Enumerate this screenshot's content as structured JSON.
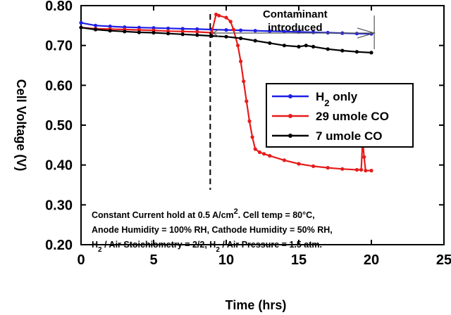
{
  "chart_data": {
    "type": "line",
    "xlabel": "Time (hrs)",
    "ylabel": "Cell Voltage (V)",
    "xlim": [
      0,
      25
    ],
    "ylim": [
      0.2,
      0.8
    ],
    "xticks": [
      0,
      5,
      10,
      15,
      20,
      25
    ],
    "xtick_labels": [
      "0",
      "5",
      "10",
      "15",
      "20",
      "25"
    ],
    "yticks": [
      0.2,
      0.3,
      0.4,
      0.5,
      0.6,
      0.7,
      0.8
    ],
    "ytick_labels": [
      "0.20",
      "0.30",
      "0.40",
      "0.50",
      "0.60",
      "0.70",
      "0.80"
    ],
    "grid": false,
    "legend_position": "center-right",
    "series": [
      {
        "name_parts": [
          "H",
          "2",
          " only"
        ],
        "color": "#1f1fe6",
        "x": [
          0,
          1,
          2,
          3,
          4,
          5,
          6,
          7,
          8,
          9,
          10,
          11,
          12,
          13,
          14,
          15,
          16,
          17,
          18,
          19,
          20
        ],
        "y": [
          0.757,
          0.75,
          0.748,
          0.746,
          0.745,
          0.744,
          0.743,
          0.742,
          0.741,
          0.74,
          0.739,
          0.738,
          0.737,
          0.736,
          0.735,
          0.734,
          0.733,
          0.732,
          0.731,
          0.73,
          0.729
        ]
      },
      {
        "name": "29 umole CO",
        "color": "#e61c1c",
        "x": [
          0,
          1,
          2,
          3,
          4,
          5,
          6,
          7,
          8,
          9,
          9.3,
          9.5,
          10.0,
          10.3,
          10.5,
          10.8,
          11.0,
          11.2,
          11.4,
          11.6,
          11.8,
          12.0,
          12.3,
          12.6,
          13,
          14,
          15,
          16,
          17,
          18,
          19,
          19.3,
          19.4,
          19.5,
          19.6,
          20
        ],
        "y": [
          0.745,
          0.742,
          0.741,
          0.74,
          0.739,
          0.738,
          0.736,
          0.735,
          0.734,
          0.732,
          0.778,
          0.775,
          0.77,
          0.76,
          0.74,
          0.7,
          0.66,
          0.61,
          0.56,
          0.51,
          0.47,
          0.44,
          0.432,
          0.428,
          0.423,
          0.412,
          0.403,
          0.397,
          0.393,
          0.39,
          0.388,
          0.388,
          0.462,
          0.42,
          0.386,
          0.386
        ]
      },
      {
        "name": "7 umole CO",
        "color": "#000000",
        "x": [
          0,
          1,
          2,
          3,
          4,
          5,
          6,
          7,
          8,
          9,
          10,
          11,
          12,
          13,
          14,
          15,
          15.5,
          16,
          17,
          18,
          19,
          20
        ],
        "y": [
          0.745,
          0.74,
          0.737,
          0.735,
          0.733,
          0.732,
          0.73,
          0.728,
          0.726,
          0.724,
          0.722,
          0.718,
          0.712,
          0.706,
          0.7,
          0.697,
          0.7,
          0.697,
          0.691,
          0.687,
          0.684,
          0.682
        ]
      }
    ],
    "annotations": {
      "marker_time": 8.9,
      "arrow_start": 9.1,
      "arrow_end": 20.2,
      "arrow_label": [
        "Contaminant",
        "introduced"
      ],
      "note_lines": [
        [
          "Constant Current hold at 0.5 A/cm",
          "2",
          ". Cell temp = 80°C,"
        ],
        [
          "Anode Humidity = 100% RH, Cathode Humidity = 50% RH,"
        ],
        [
          "H",
          "2",
          " / Air Stoichiometry = 2/2, H",
          "2",
          " / Air Pressure = 1.5 atm."
        ]
      ]
    }
  }
}
